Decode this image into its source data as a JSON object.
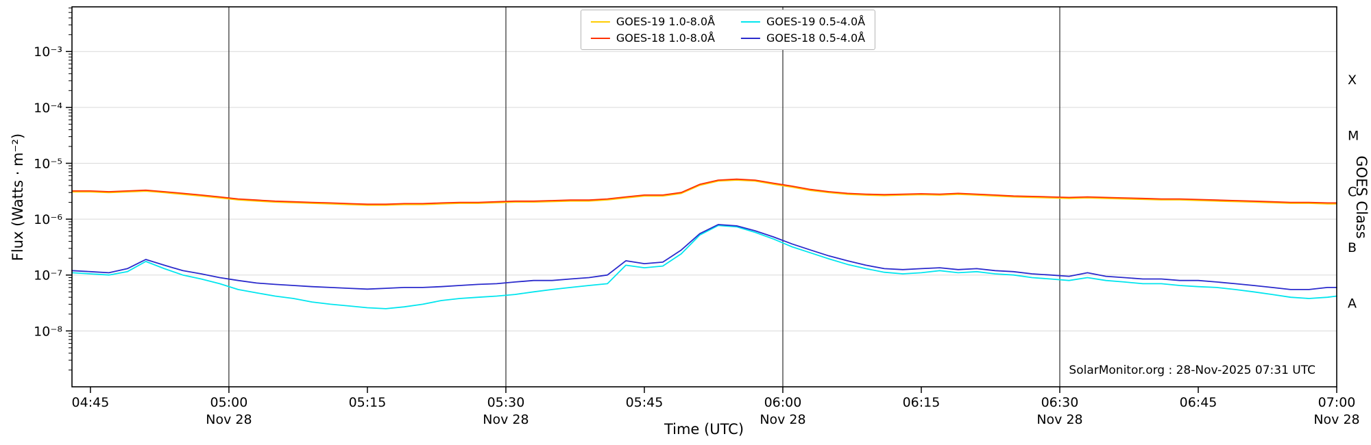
{
  "figure": {
    "watermark": "SolarMonitor.org : 28-Nov-2025 07:31 UTC"
  },
  "chart_data": {
    "type": "line",
    "title": "",
    "xlabel": "Time (UTC)",
    "ylabel": "Flux (Watts · m⁻²)",
    "ylabel_right": "GOES Class",
    "x_unit": "minutes since 00:00 UTC on Nov 28",
    "xlim": [
      283,
      420
    ],
    "ylim": [
      1e-09,
      0.0063
    ],
    "grid": "horizontal light-gray at decades; vertical dark lines each 30 min",
    "legend_position": "top-center",
    "x_ticks": [
      {
        "m": 285,
        "label": "04:45"
      },
      {
        "m": 300,
        "label": "05:00"
      },
      {
        "m": 315,
        "label": "05:15"
      },
      {
        "m": 330,
        "label": "05:30"
      },
      {
        "m": 345,
        "label": "05:45"
      },
      {
        "m": 360,
        "label": "06:00"
      },
      {
        "m": 375,
        "label": "06:15"
      },
      {
        "m": 390,
        "label": "06:30"
      },
      {
        "m": 405,
        "label": "06:45"
      },
      {
        "m": 420,
        "label": "07:00"
      }
    ],
    "x_day_labels": [
      {
        "m": 300,
        "label": "Nov 28"
      },
      {
        "m": 330,
        "label": "Nov 28"
      },
      {
        "m": 360,
        "label": "Nov 28"
      },
      {
        "m": 390,
        "label": "Nov 28"
      },
      {
        "m": 420,
        "label": "Nov 28"
      }
    ],
    "x_gridlines": [
      300,
      330,
      360,
      390
    ],
    "y_ticks": [
      {
        "v": 0.001,
        "label": "10⁻³"
      },
      {
        "v": 0.0001,
        "label": "10⁻⁴"
      },
      {
        "v": 1e-05,
        "label": "10⁻⁵"
      },
      {
        "v": 1e-06,
        "label": "10⁻⁶"
      },
      {
        "v": 1e-07,
        "label": "10⁻⁷"
      },
      {
        "v": 1e-08,
        "label": "10⁻⁸"
      }
    ],
    "y_gridlines": [
      1e-08,
      1e-07,
      1e-06,
      1e-05,
      0.0001,
      0.001
    ],
    "class_labels": [
      {
        "v": 0.000316,
        "label": "X"
      },
      {
        "v": 3.16e-05,
        "label": "M"
      },
      {
        "v": 3.16e-06,
        "label": "C"
      },
      {
        "v": 3.16e-07,
        "label": "B"
      },
      {
        "v": 3.16e-08,
        "label": "A"
      }
    ],
    "legend": [
      {
        "label": "GOES-19 1.0-8.0Å",
        "color": "#ffcc00"
      },
      {
        "label": "GOES-19 0.5-4.0Å",
        "color": "#00e5ee"
      },
      {
        "label": "GOES-18 1.0-8.0Å",
        "color": "#ff3000"
      },
      {
        "label": "GOES-18 0.5-4.0Å",
        "color": "#2a2acc"
      }
    ],
    "x": [
      283,
      285,
      287,
      289,
      291,
      293,
      295,
      297,
      299,
      301,
      303,
      305,
      307,
      309,
      311,
      313,
      315,
      317,
      319,
      321,
      323,
      325,
      327,
      329,
      331,
      333,
      335,
      337,
      339,
      341,
      343,
      345,
      347,
      349,
      351,
      353,
      355,
      357,
      359,
      361,
      363,
      365,
      367,
      369,
      371,
      373,
      375,
      377,
      379,
      381,
      383,
      385,
      387,
      389,
      391,
      393,
      395,
      397,
      399,
      401,
      403,
      405,
      407,
      409,
      411,
      413,
      415,
      417,
      419,
      420
    ],
    "series": [
      {
        "name": "GOES-19 1.0-8.0Å",
        "color": "#ffcc00",
        "values": [
          3.07e-06,
          3.07e-06,
          2.98e-06,
          3.07e-06,
          3.17e-06,
          2.98e-06,
          2.78e-06,
          2.59e-06,
          2.4e-06,
          2.21e-06,
          2.11e-06,
          2.02e-06,
          1.97e-06,
          1.92e-06,
          1.87e-06,
          1.82e-06,
          1.78e-06,
          1.78e-06,
          1.82e-06,
          1.82e-06,
          1.87e-06,
          1.92e-06,
          1.92e-06,
          1.97e-06,
          2.02e-06,
          2.02e-06,
          2.06e-06,
          2.11e-06,
          2.11e-06,
          2.21e-06,
          2.4e-06,
          2.59e-06,
          2.59e-06,
          2.88e-06,
          4.03e-06,
          4.8e-06,
          4.99e-06,
          4.8e-06,
          4.22e-06,
          3.74e-06,
          3.26e-06,
          2.98e-06,
          2.78e-06,
          2.69e-06,
          2.64e-06,
          2.69e-06,
          2.74e-06,
          2.69e-06,
          2.78e-06,
          2.69e-06,
          2.59e-06,
          2.5e-06,
          2.45e-06,
          2.4e-06,
          2.35e-06,
          2.4e-06,
          2.35e-06,
          2.3e-06,
          2.26e-06,
          2.21e-06,
          2.21e-06,
          2.16e-06,
          2.11e-06,
          2.06e-06,
          2.02e-06,
          1.97e-06,
          1.92e-06,
          1.92e-06,
          1.87e-06,
          1.87e-06
        ]
      },
      {
        "name": "GOES-18 1.0-8.0Å",
        "color": "#ff3000",
        "values": [
          3.2e-06,
          3.2e-06,
          3.1e-06,
          3.2e-06,
          3.3e-06,
          3.1e-06,
          2.9e-06,
          2.7e-06,
          2.5e-06,
          2.3e-06,
          2.2e-06,
          2.1e-06,
          2.05e-06,
          2e-06,
          1.95e-06,
          1.9e-06,
          1.85e-06,
          1.85e-06,
          1.9e-06,
          1.9e-06,
          1.95e-06,
          2e-06,
          2e-06,
          2.05e-06,
          2.1e-06,
          2.1e-06,
          2.15e-06,
          2.2e-06,
          2.2e-06,
          2.3e-06,
          2.5e-06,
          2.7e-06,
          2.7e-06,
          3e-06,
          4.2e-06,
          5e-06,
          5.2e-06,
          5e-06,
          4.4e-06,
          3.9e-06,
          3.4e-06,
          3.1e-06,
          2.9e-06,
          2.8e-06,
          2.75e-06,
          2.8e-06,
          2.85e-06,
          2.8e-06,
          2.9e-06,
          2.8e-06,
          2.7e-06,
          2.6e-06,
          2.55e-06,
          2.5e-06,
          2.45e-06,
          2.5e-06,
          2.45e-06,
          2.4e-06,
          2.35e-06,
          2.3e-06,
          2.3e-06,
          2.25e-06,
          2.2e-06,
          2.15e-06,
          2.1e-06,
          2.05e-06,
          2e-06,
          2e-06,
          1.95e-06,
          1.95e-06
        ]
      },
      {
        "name": "GOES-19 0.5-4.0Å",
        "color": "#00e5ee",
        "values": [
          1.1e-07,
          1.05e-07,
          1e-07,
          1.15e-07,
          1.75e-07,
          1.3e-07,
          1e-07,
          8.5e-08,
          7e-08,
          5.5e-08,
          4.8e-08,
          4.2e-08,
          3.8e-08,
          3.3e-08,
          3e-08,
          2.8e-08,
          2.6e-08,
          2.5e-08,
          2.7e-08,
          3e-08,
          3.5e-08,
          3.8e-08,
          4e-08,
          4.2e-08,
          4.5e-08,
          5e-08,
          5.5e-08,
          6e-08,
          6.5e-08,
          7e-08,
          1.5e-07,
          1.35e-07,
          1.45e-07,
          2.4e-07,
          5.2e-07,
          7.7e-07,
          7.3e-07,
          5.8e-07,
          4.4e-07,
          3.2e-07,
          2.5e-07,
          1.95e-07,
          1.55e-07,
          1.3e-07,
          1.12e-07,
          1.05e-07,
          1.1e-07,
          1.2e-07,
          1.1e-07,
          1.15e-07,
          1.05e-07,
          1e-07,
          9e-08,
          8.5e-08,
          8e-08,
          9e-08,
          8e-08,
          7.5e-08,
          7e-08,
          7e-08,
          6.5e-08,
          6.2e-08,
          6e-08,
          5.5e-08,
          5e-08,
          4.5e-08,
          4e-08,
          3.8e-08,
          4e-08,
          4.2e-08
        ]
      },
      {
        "name": "GOES-18 0.5-4.0Å",
        "color": "#2a2acc",
        "values": [
          1.2e-07,
          1.15e-07,
          1.1e-07,
          1.3e-07,
          1.9e-07,
          1.5e-07,
          1.2e-07,
          1.05e-07,
          9e-08,
          8e-08,
          7.2e-08,
          6.8e-08,
          6.5e-08,
          6.2e-08,
          6e-08,
          5.8e-08,
          5.6e-08,
          5.8e-08,
          6e-08,
          6e-08,
          6.2e-08,
          6.5e-08,
          6.8e-08,
          7e-08,
          7.5e-08,
          8e-08,
          8e-08,
          8.5e-08,
          9e-08,
          1e-07,
          1.8e-07,
          1.6e-07,
          1.7e-07,
          2.8e-07,
          5.5e-07,
          8e-07,
          7.6e-07,
          6.2e-07,
          4.8e-07,
          3.6e-07,
          2.8e-07,
          2.2e-07,
          1.8e-07,
          1.5e-07,
          1.3e-07,
          1.25e-07,
          1.3e-07,
          1.35e-07,
          1.25e-07,
          1.3e-07,
          1.2e-07,
          1.15e-07,
          1.05e-07,
          1e-07,
          9.5e-08,
          1.1e-07,
          9.5e-08,
          9e-08,
          8.5e-08,
          8.5e-08,
          8e-08,
          8e-08,
          7.5e-08,
          7e-08,
          6.5e-08,
          6e-08,
          5.5e-08,
          5.5e-08,
          6e-08,
          6e-08
        ]
      }
    ]
  }
}
